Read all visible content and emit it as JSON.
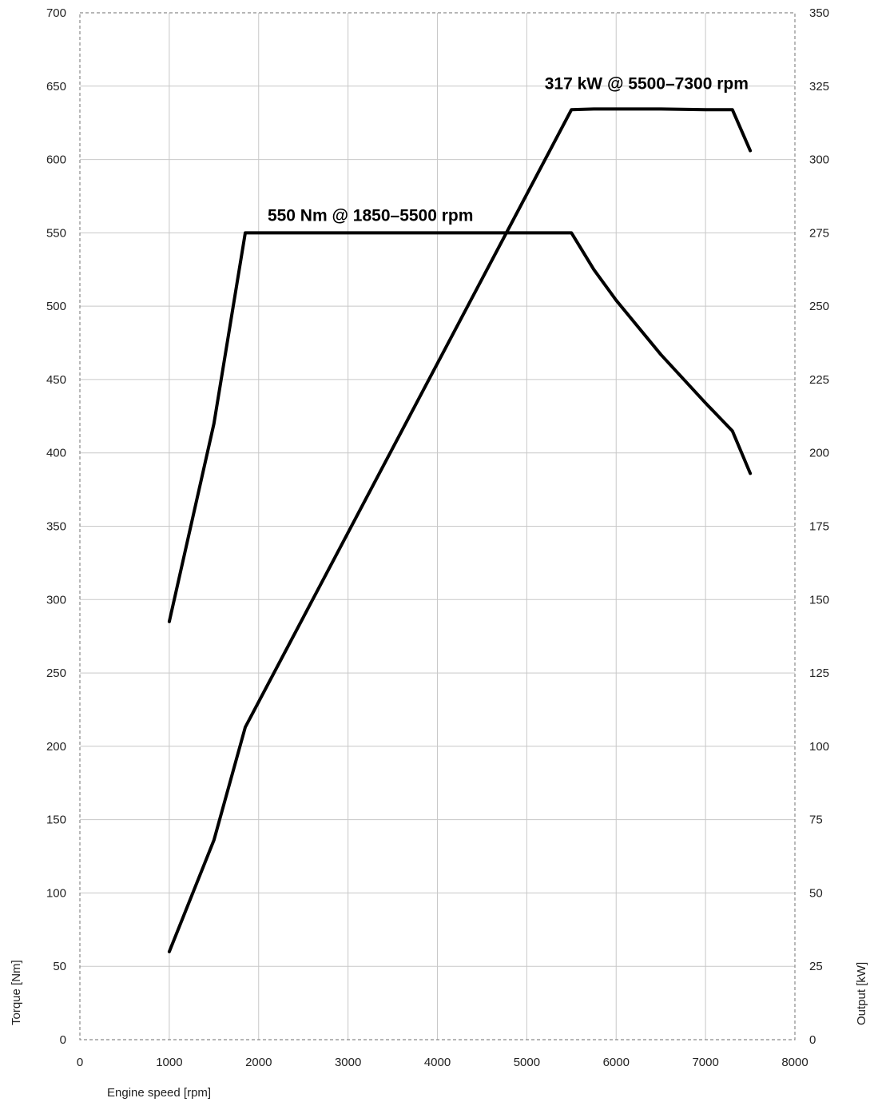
{
  "chart_data": {
    "type": "line",
    "xlabel": "Engine speed [rpm]",
    "ylabel_left": "Torque [Nm]",
    "ylabel_right": "Output [kW]",
    "xlim": [
      0,
      8000
    ],
    "ylim_left": [
      0,
      700
    ],
    "ylim_right": [
      0,
      350
    ],
    "x_ticks": [
      "0",
      "1000",
      "2000",
      "3000",
      "4000",
      "5000",
      "6000",
      "7000",
      "8000"
    ],
    "y_ticks_left": [
      "0",
      "50",
      "100",
      "150",
      "200",
      "250",
      "300",
      "350",
      "400",
      "450",
      "500",
      "550",
      "600",
      "650",
      "700"
    ],
    "y_ticks_right": [
      "0",
      "25",
      "50",
      "75",
      "100",
      "125",
      "150",
      "175",
      "200",
      "225",
      "250",
      "275",
      "300",
      "325",
      "350"
    ],
    "grid": true,
    "series": [
      {
        "axis": "left",
        "x": [
          1000,
          1500,
          1850,
          5500,
          5750,
          6000,
          6500,
          7000,
          7300,
          7500
        ],
        "y": [
          285,
          420,
          550,
          550,
          525,
          504,
          467,
          434,
          415,
          386
        ]
      },
      {
        "axis": "right",
        "x": [
          1000,
          1500,
          1850,
          5500,
          5750,
          6000,
          6500,
          7000,
          7300,
          7500
        ],
        "y": [
          30,
          68,
          106.5,
          317,
          317.2,
          317.2,
          317.2,
          317,
          317,
          303
        ]
      }
    ],
    "annotations": [
      {
        "text": "550 Nm @ 1850–5500 rpm",
        "x": 2100,
        "y": 558,
        "axis": "left"
      },
      {
        "text": "317 kW @ 5500–7300 rpm",
        "x": 5200,
        "y": 324,
        "axis": "right"
      }
    ]
  }
}
